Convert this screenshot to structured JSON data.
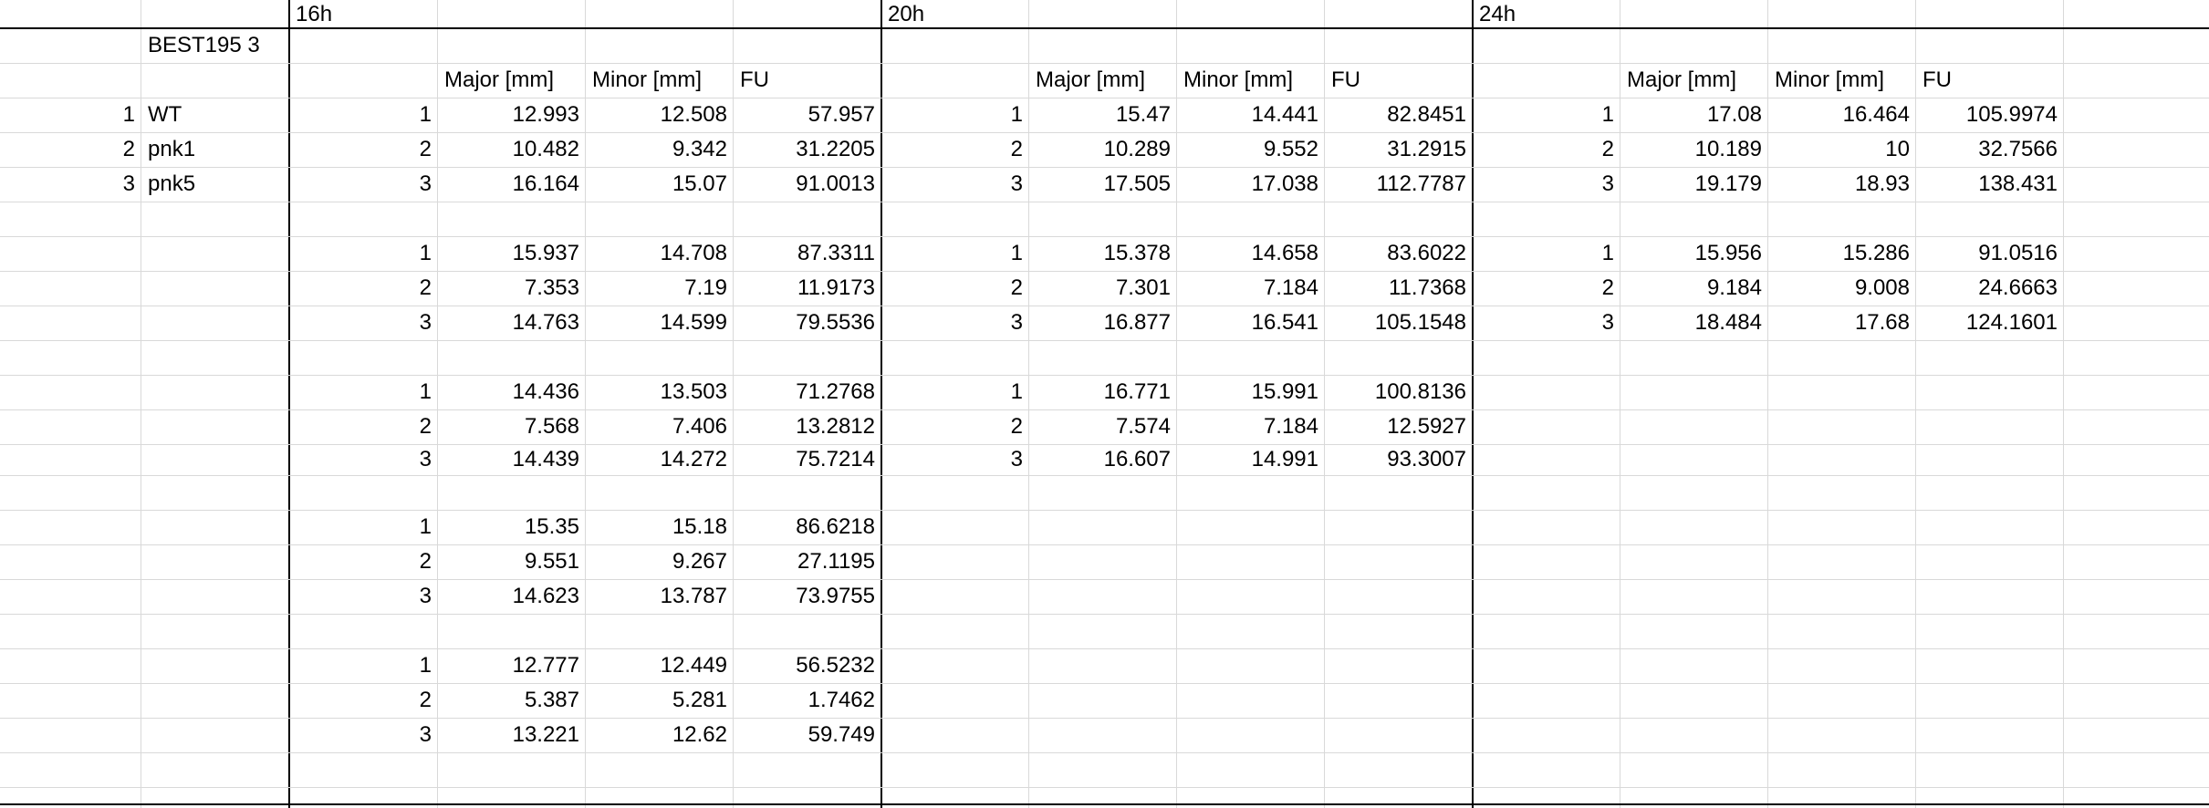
{
  "label_block": {
    "title": "BEST195 3",
    "strains": [
      {
        "num": "1",
        "name": "WT"
      },
      {
        "num": "2",
        "name": "pnk1"
      },
      {
        "num": "3",
        "name": "pnk5"
      }
    ]
  },
  "timepoints": [
    {
      "label": "16h",
      "headers": [
        "Major [mm]",
        "Minor [mm]",
        "FU"
      ],
      "groups": [
        [
          [
            "1",
            "12.993",
            "12.508",
            "57.957"
          ],
          [
            "2",
            "10.482",
            "9.342",
            "31.2205"
          ],
          [
            "3",
            "16.164",
            "15.07",
            "91.0013"
          ]
        ],
        [
          [
            "1",
            "15.937",
            "14.708",
            "87.3311"
          ],
          [
            "2",
            "7.353",
            "7.19",
            "11.9173"
          ],
          [
            "3",
            "14.763",
            "14.599",
            "79.5536"
          ]
        ],
        [
          [
            "1",
            "14.436",
            "13.503",
            "71.2768"
          ],
          [
            "2",
            "7.568",
            "7.406",
            "13.2812"
          ],
          [
            "3",
            "14.439",
            "14.272",
            "75.7214"
          ]
        ],
        [
          [
            "1",
            "15.35",
            "15.18",
            "86.6218"
          ],
          [
            "2",
            "9.551",
            "9.267",
            "27.1195"
          ],
          [
            "3",
            "14.623",
            "13.787",
            "73.9755"
          ]
        ],
        [
          [
            "1",
            "12.777",
            "12.449",
            "56.5232"
          ],
          [
            "2",
            "5.387",
            "5.281",
            "1.7462"
          ],
          [
            "3",
            "13.221",
            "12.62",
            "59.749"
          ]
        ]
      ]
    },
    {
      "label": "20h",
      "headers": [
        "Major [mm]",
        "Minor [mm]",
        "FU"
      ],
      "groups": [
        [
          [
            "1",
            "15.47",
            "14.441",
            "82.8451"
          ],
          [
            "2",
            "10.289",
            "9.552",
            "31.2915"
          ],
          [
            "3",
            "17.505",
            "17.038",
            "112.7787"
          ]
        ],
        [
          [
            "1",
            "15.378",
            "14.658",
            "83.6022"
          ],
          [
            "2",
            "7.301",
            "7.184",
            "11.7368"
          ],
          [
            "3",
            "16.877",
            "16.541",
            "105.1548"
          ]
        ],
        [
          [
            "1",
            "16.771",
            "15.991",
            "100.8136"
          ],
          [
            "2",
            "7.574",
            "7.184",
            "12.5927"
          ],
          [
            "3",
            "16.607",
            "14.991",
            "93.3007"
          ]
        ]
      ]
    },
    {
      "label": "24h",
      "headers": [
        "Major [mm]",
        "Minor [mm]",
        "FU"
      ],
      "groups": [
        [
          [
            "1",
            "17.08",
            "16.464",
            "105.9974"
          ],
          [
            "2",
            "10.189",
            "10",
            "32.7566"
          ],
          [
            "3",
            "19.179",
            "18.93",
            "138.431"
          ]
        ],
        [
          [
            "1",
            "15.956",
            "15.286",
            "91.0516"
          ],
          [
            "2",
            "9.184",
            "9.008",
            "24.6663"
          ],
          [
            "3",
            "18.484",
            "17.68",
            "124.1601"
          ]
        ]
      ]
    }
  ]
}
